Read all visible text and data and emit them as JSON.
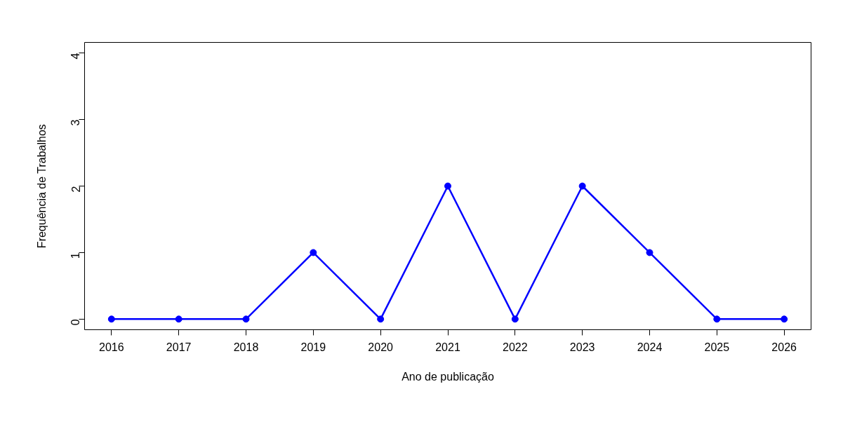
{
  "chart_data": {
    "type": "line",
    "xlabel": "Ano de publicação",
    "ylabel": "Frequência de Trabalhos",
    "x": [
      2016,
      2017,
      2018,
      2019,
      2020,
      2021,
      2022,
      2023,
      2024,
      2025,
      2026
    ],
    "series": [
      {
        "color": "#0000ff",
        "values": [
          0,
          0,
          0,
          1,
          0,
          2,
          0,
          2,
          1,
          0,
          0
        ]
      }
    ],
    "xlim": [
      2015.6,
      2026.4
    ],
    "ylim": [
      -0.16,
      4.16
    ],
    "xticks": [
      2016,
      2017,
      2018,
      2019,
      2020,
      2021,
      2022,
      2023,
      2024,
      2025,
      2026
    ],
    "yticks": [
      0,
      1,
      2,
      3,
      4
    ],
    "grid": false,
    "marker": "circle",
    "line_style": "solid"
  }
}
